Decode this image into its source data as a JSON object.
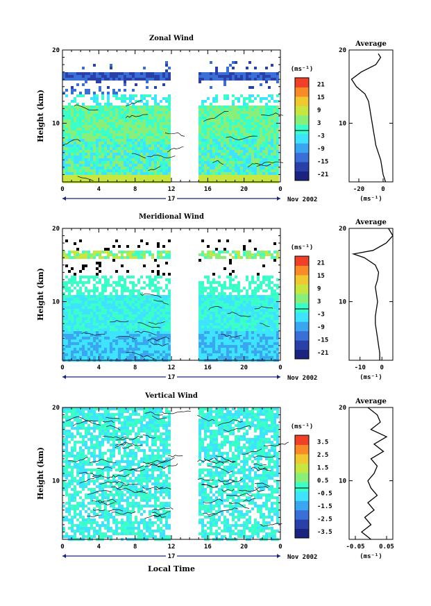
{
  "unit_label": "(ms⁻¹)",
  "average_unit_label": "(ms⁻¹)",
  "x_axis_title": "Local Time",
  "date_label": "Nov 2002",
  "day_label": "17",
  "colors": [
    "#1a237e",
    "#2940a8",
    "#3a6fd8",
    "#3aa5f0",
    "#3de3ff",
    "#3affc8",
    "#88f07a",
    "#c8e640",
    "#f0c830",
    "#f88a28",
    "#f04028"
  ],
  "chart_data": [
    {
      "type": "heatmap",
      "title": "Zonal Wind",
      "ylabel": "Height (km)",
      "x_ticks": [
        "0",
        "4",
        "8",
        "12",
        "16",
        "20",
        "0"
      ],
      "y_ticks": [
        "10",
        "20"
      ],
      "xlim": [
        0,
        24
      ],
      "ylim": [
        2,
        20
      ],
      "colorbar": {
        "ticks": [
          "21",
          "15",
          "9",
          "3",
          "-3",
          "-9",
          "-15",
          "-21"
        ],
        "range": [
          -24,
          24
        ]
      },
      "data_gap_hours": [
        11.7,
        14.8
      ],
      "average": {
        "title": "Average",
        "x_ticks": [
          "-20",
          "0"
        ],
        "xlim": [
          -28,
          8
        ],
        "height_km": [
          2,
          3,
          4,
          5,
          6,
          7,
          8,
          9,
          10,
          11,
          12,
          13,
          14,
          15,
          16,
          17,
          18,
          19,
          19.5
        ],
        "values": [
          2,
          0,
          -1,
          -2,
          -4,
          -6,
          -7,
          -8,
          -9,
          -10,
          -11,
          -12,
          -15,
          -22,
          -26,
          -18,
          -6,
          -2,
          -4
        ]
      }
    },
    {
      "type": "heatmap",
      "title": "Meridional Wind",
      "ylabel": "Height (km)",
      "x_ticks": [
        "0",
        "4",
        "8",
        "12",
        "16",
        "20",
        "0"
      ],
      "y_ticks": [
        "10",
        "20"
      ],
      "xlim": [
        0,
        24
      ],
      "ylim": [
        2,
        20
      ],
      "colorbar": {
        "ticks": [
          "21",
          "15",
          "9",
          "3",
          "-3",
          "-9",
          "-15",
          "-21"
        ],
        "range": [
          -24,
          24
        ]
      },
      "data_gap_hours": [
        11.7,
        14.8
      ],
      "average": {
        "title": "Average",
        "x_ticks": [
          "-10",
          "0"
        ],
        "xlim": [
          -15,
          5
        ],
        "height_km": [
          2,
          3,
          4,
          5,
          6,
          7,
          8,
          9,
          10,
          11,
          12,
          13,
          14,
          15,
          16,
          16.5,
          17,
          18,
          19,
          20
        ],
        "values": [
          -1,
          -1,
          -1.5,
          -2,
          -2.5,
          -3,
          -3,
          -2.5,
          -2,
          -2.5,
          -3,
          -2,
          -1.5,
          -3,
          -8,
          -13,
          -4,
          2,
          5,
          3
        ]
      }
    },
    {
      "type": "heatmap",
      "title": "Vertical Wind",
      "ylabel": "Height (km)",
      "x_ticks": [
        "0",
        "4",
        "8",
        "12",
        "16",
        "20",
        "0"
      ],
      "y_ticks": [
        "10",
        "20"
      ],
      "xlim": [
        0,
        24
      ],
      "ylim": [
        2,
        20
      ],
      "colorbar": {
        "ticks": [
          "3.5",
          "2.5",
          "1.5",
          "0.5",
          "-0.5",
          "-1.5",
          "-2.5",
          "-3.5"
        ],
        "range": [
          -4,
          4
        ]
      },
      "data_gap_hours": [
        11.7,
        14.8
      ],
      "average": {
        "title": "Average",
        "x_ticks": [
          "-0.05",
          "0.05"
        ],
        "xlim": [
          -0.07,
          0.07
        ],
        "height_km": [
          2,
          3,
          4,
          5,
          6,
          7,
          8,
          9,
          10,
          11,
          12,
          13,
          14,
          15,
          16,
          17,
          18,
          19,
          20
        ],
        "values": [
          0.0,
          -0.03,
          0.0,
          -0.02,
          0.01,
          -0.01,
          0.02,
          0.0,
          -0.01,
          0.01,
          0.02,
          0.0,
          0.04,
          0.01,
          0.05,
          0.0,
          0.03,
          0.02,
          -0.01
        ]
      }
    }
  ]
}
